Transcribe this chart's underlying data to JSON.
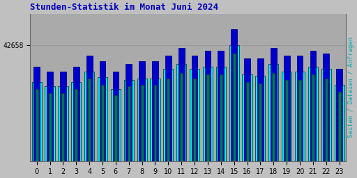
{
  "title": "Stunden-Statistik im Monat Juni 2024",
  "ylabel_right": "Seiten / Dateien / Anfragen",
  "ytick_label": "42658",
  "hours": [
    0,
    1,
    2,
    3,
    4,
    5,
    6,
    7,
    8,
    9,
    10,
    11,
    12,
    13,
    14,
    15,
    16,
    17,
    18,
    19,
    20,
    21,
    22,
    23
  ],
  "bar_cyan": [
    0.6,
    0.57,
    0.57,
    0.6,
    0.68,
    0.64,
    0.55,
    0.62,
    0.63,
    0.63,
    0.7,
    0.74,
    0.7,
    0.72,
    0.72,
    0.88,
    0.66,
    0.65,
    0.74,
    0.68,
    0.68,
    0.72,
    0.7,
    0.58
  ],
  "bar_blue": [
    0.72,
    0.68,
    0.68,
    0.72,
    0.8,
    0.76,
    0.68,
    0.74,
    0.76,
    0.76,
    0.8,
    0.86,
    0.8,
    0.84,
    0.84,
    1.0,
    0.78,
    0.78,
    0.86,
    0.8,
    0.8,
    0.84,
    0.82,
    0.7
  ],
  "bar_teal": [
    0.55,
    0.52,
    0.52,
    0.55,
    0.63,
    0.58,
    0.5,
    0.57,
    0.58,
    0.58,
    0.63,
    0.67,
    0.63,
    0.66,
    0.66,
    0.82,
    0.6,
    0.59,
    0.67,
    0.62,
    0.62,
    0.66,
    0.63,
    0.53
  ],
  "color_cyan": "#00EEEE",
  "color_blue": "#0000CC",
  "color_teal": "#007755",
  "edge_cyan": "#009999",
  "edge_blue": "#000088",
  "edge_teal": "#004433",
  "bg_color": "#C0C0C0",
  "plot_bg": "#AAAAAA",
  "title_color": "#0000BB",
  "right_label_color": "#00AAAA",
  "grid_color": "#999999",
  "bar_width": 0.75,
  "ylim_max": 1.12,
  "ytick_pos": 0.88,
  "title_fontsize": 9,
  "tick_fontsize": 7
}
